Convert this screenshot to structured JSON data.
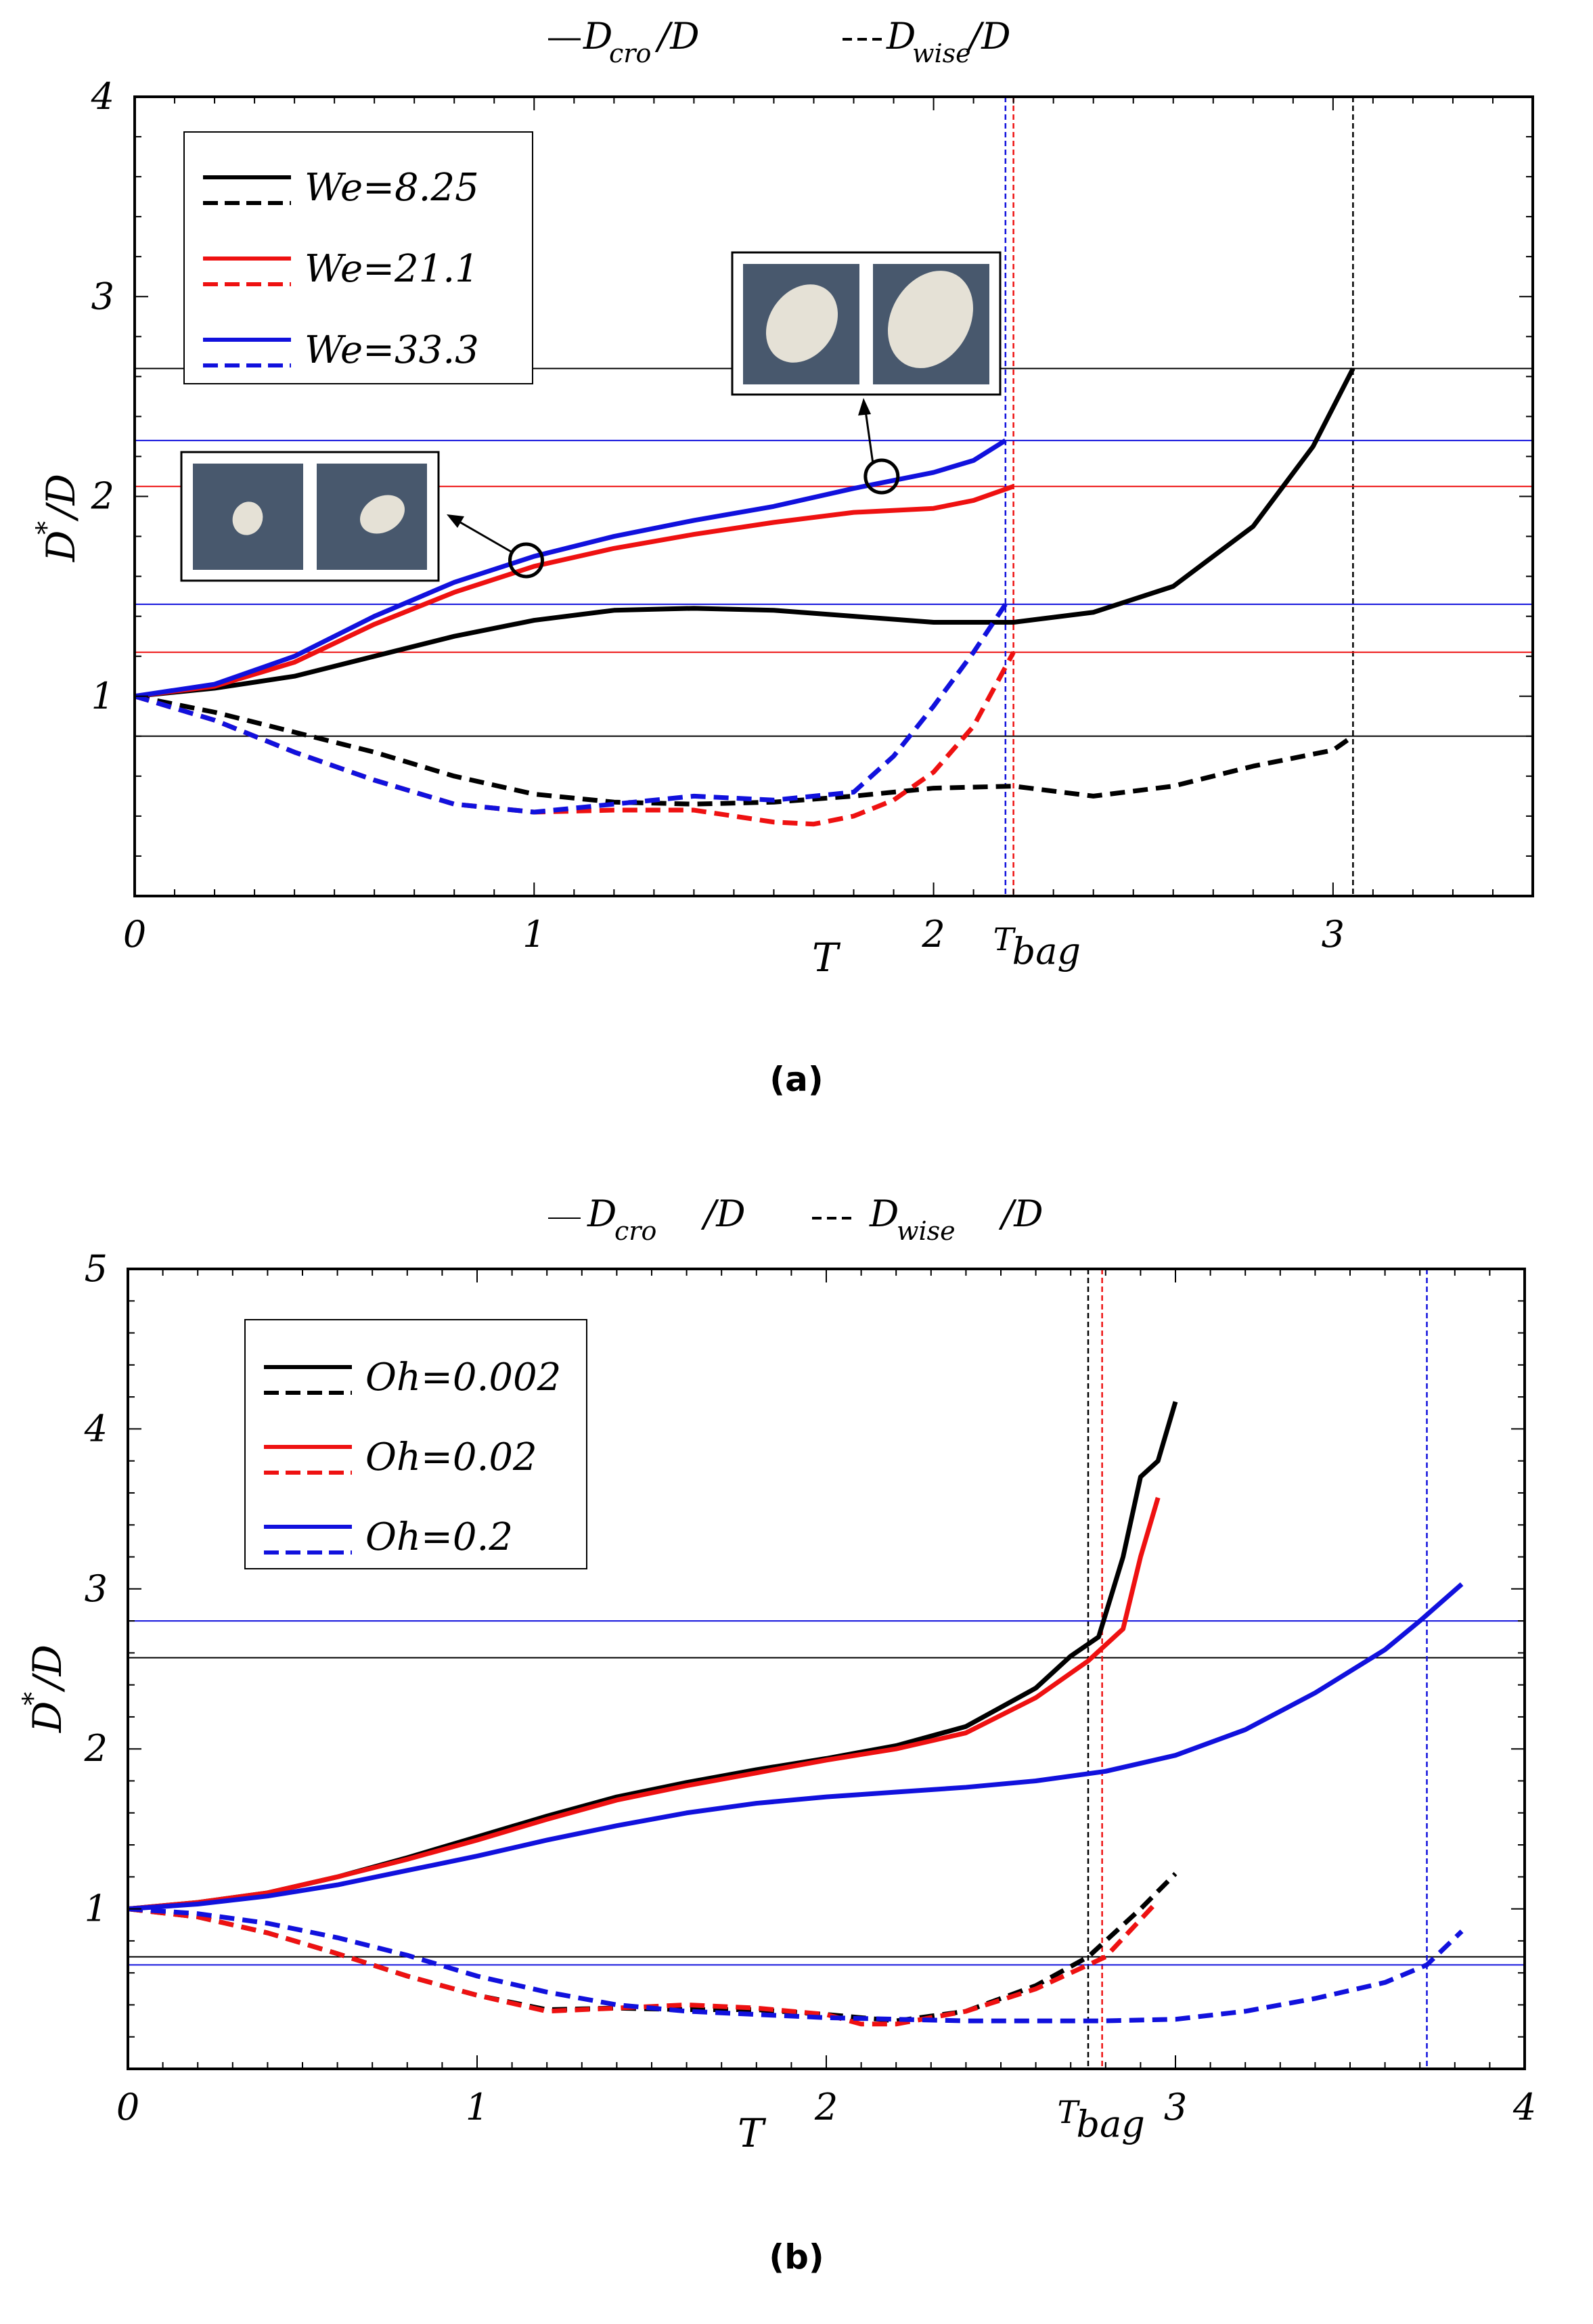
{
  "chart_data": [
    {
      "panel": "a",
      "type": "line",
      "caption": "(a)",
      "header": {
        "solid_label": "D",
        "solid_sub": "cro",
        "solid_tail": "/D",
        "dashed_label": "D",
        "dashed_sub": "wise",
        "dashed_tail": "/D"
      },
      "xlabel": "T",
      "ylabel": "D",
      "ylabel_sup": "*",
      "ylabel_tail": "/D",
      "xlim": [
        0,
        3.5
      ],
      "ylim": [
        0,
        4
      ],
      "xticks": [
        0,
        1,
        2,
        3
      ],
      "xtick_labels": [
        "0",
        "1",
        "2",
        "3"
      ],
      "yticks": [
        1,
        2,
        3,
        4
      ],
      "ytick_labels": [
        "1",
        "2",
        "3",
        "4"
      ],
      "tbag_label": "T",
      "tbag_sub": "bag",
      "tbag_label_x": 2.2,
      "legend_position": "top-left",
      "colors": {
        "black": "#000000",
        "red": "#ee1111",
        "blue": "#1111dd"
      },
      "series": [
        {
          "name": "We=8.25",
          "legend": "We=8.25",
          "color": "#000000",
          "solid_x": [
            0,
            0.2,
            0.4,
            0.6,
            0.8,
            1.0,
            1.2,
            1.4,
            1.6,
            1.8,
            2.0,
            2.2,
            2.4,
            2.6,
            2.8,
            2.95,
            3.05
          ],
          "solid_y": [
            1.0,
            1.04,
            1.1,
            1.2,
            1.3,
            1.38,
            1.43,
            1.44,
            1.43,
            1.4,
            1.37,
            1.37,
            1.42,
            1.55,
            1.85,
            2.25,
            2.64
          ],
          "dashed_x": [
            0,
            0.2,
            0.4,
            0.6,
            0.8,
            1.0,
            1.2,
            1.4,
            1.6,
            1.8,
            2.0,
            2.2,
            2.4,
            2.6,
            2.8,
            3.0,
            3.05
          ],
          "dashed_y": [
            1.0,
            0.92,
            0.82,
            0.72,
            0.6,
            0.51,
            0.47,
            0.46,
            0.47,
            0.5,
            0.54,
            0.55,
            0.5,
            0.55,
            0.65,
            0.73,
            0.8
          ],
          "tbag": 3.05,
          "hlines": [
            2.64,
            0.8
          ]
        },
        {
          "name": "We=21.1",
          "legend": "We=21.1",
          "color": "#ee1111",
          "solid_x": [
            0,
            0.2,
            0.4,
            0.6,
            0.8,
            1.0,
            1.2,
            1.4,
            1.6,
            1.8,
            2.0,
            2.1,
            2.2
          ],
          "solid_y": [
            1.0,
            1.05,
            1.17,
            1.36,
            1.52,
            1.65,
            1.74,
            1.81,
            1.87,
            1.92,
            1.94,
            1.98,
            2.05
          ],
          "dashed_x": [
            0,
            0.2,
            0.4,
            0.6,
            0.8,
            1.0,
            1.2,
            1.4,
            1.6,
            1.7,
            1.8,
            1.9,
            2.0,
            2.1,
            2.2
          ],
          "dashed_y": [
            1.0,
            0.88,
            0.72,
            0.58,
            0.46,
            0.42,
            0.43,
            0.43,
            0.37,
            0.36,
            0.4,
            0.48,
            0.62,
            0.85,
            1.22
          ],
          "tbag": 2.2,
          "hlines": [
            2.05,
            1.22
          ]
        },
        {
          "name": "We=33.3",
          "legend": "We=33.3",
          "color": "#1111dd",
          "solid_x": [
            0,
            0.2,
            0.4,
            0.6,
            0.8,
            1.0,
            1.2,
            1.4,
            1.6,
            1.8,
            2.0,
            2.1,
            2.18
          ],
          "solid_y": [
            1.0,
            1.06,
            1.2,
            1.4,
            1.57,
            1.7,
            1.8,
            1.88,
            1.95,
            2.04,
            2.12,
            2.18,
            2.28
          ],
          "dashed_x": [
            0,
            0.2,
            0.4,
            0.6,
            0.8,
            1.0,
            1.2,
            1.4,
            1.6,
            1.8,
            1.9,
            2.0,
            2.1,
            2.18
          ],
          "dashed_y": [
            1.0,
            0.88,
            0.72,
            0.58,
            0.46,
            0.42,
            0.46,
            0.5,
            0.48,
            0.52,
            0.7,
            0.95,
            1.22,
            1.46
          ],
          "tbag": 2.18,
          "hlines": [
            2.28,
            1.46
          ]
        }
      ],
      "annotations": [
        {
          "type": "droplet-inset",
          "marker_x": 0.98,
          "marker_y": 1.68
        },
        {
          "type": "droplet-inset",
          "marker_x": 1.87,
          "marker_y": 2.1
        }
      ]
    },
    {
      "panel": "b",
      "type": "line",
      "caption": "(b)",
      "header": {
        "solid_label": "D",
        "solid_sub": "cro",
        "solid_tail": "/D",
        "dashed_label": "D",
        "dashed_sub": "wise",
        "dashed_tail": "/D"
      },
      "xlabel": "T",
      "ylabel": "D",
      "ylabel_sup": "*",
      "ylabel_tail": "/D",
      "xlim": [
        0,
        4
      ],
      "ylim": [
        0,
        5
      ],
      "xticks": [
        0,
        1,
        2,
        3,
        4
      ],
      "xtick_labels": [
        "0",
        "1",
        "2",
        "3",
        "4"
      ],
      "yticks": [
        1,
        2,
        3,
        4,
        5
      ],
      "ytick_labels": [
        "1",
        "2",
        "3",
        "4",
        "5"
      ],
      "tbag_label": "T",
      "tbag_sub": "bag",
      "tbag_label_x": 2.72,
      "legend_position": "top-left",
      "colors": {
        "black": "#000000",
        "red": "#ee1111",
        "blue": "#1111dd"
      },
      "series": [
        {
          "name": "Oh=0.002",
          "legend": "Oh=0.002",
          "color": "#000000",
          "solid_x": [
            0,
            0.2,
            0.4,
            0.6,
            0.8,
            1.0,
            1.2,
            1.4,
            1.6,
            1.8,
            2.0,
            2.2,
            2.4,
            2.6,
            2.7,
            2.78,
            2.85,
            2.9,
            2.95,
            3.0
          ],
          "solid_y": [
            1.0,
            1.04,
            1.1,
            1.2,
            1.32,
            1.45,
            1.58,
            1.7,
            1.79,
            1.87,
            1.94,
            2.02,
            2.14,
            2.38,
            2.58,
            2.7,
            3.2,
            3.7,
            3.8,
            4.17
          ],
          "dashed_x": [
            0,
            0.2,
            0.4,
            0.6,
            0.8,
            1.0,
            1.2,
            1.4,
            1.6,
            1.8,
            2.0,
            2.2,
            2.4,
            2.6,
            2.75,
            2.9,
            3.0
          ],
          "dashed_y": [
            1.0,
            0.95,
            0.85,
            0.72,
            0.58,
            0.46,
            0.37,
            0.38,
            0.37,
            0.37,
            0.34,
            0.3,
            0.36,
            0.52,
            0.7,
            1.0,
            1.22
          ],
          "tbag": 2.75,
          "hlines": [
            2.57,
            0.7
          ]
        },
        {
          "name": "Oh=0.02",
          "legend": "Oh=0.02",
          "color": "#ee1111",
          "solid_x": [
            0,
            0.2,
            0.4,
            0.6,
            0.8,
            1.0,
            1.2,
            1.4,
            1.6,
            1.8,
            2.0,
            2.2,
            2.4,
            2.6,
            2.75,
            2.85,
            2.9,
            2.95
          ],
          "solid_y": [
            1.0,
            1.04,
            1.1,
            1.2,
            1.31,
            1.43,
            1.56,
            1.68,
            1.77,
            1.85,
            1.93,
            2.0,
            2.1,
            2.32,
            2.55,
            2.75,
            3.2,
            3.57
          ],
          "dashed_x": [
            0,
            0.2,
            0.4,
            0.6,
            0.8,
            1.0,
            1.2,
            1.4,
            1.6,
            1.8,
            2.0,
            2.1,
            2.2,
            2.4,
            2.6,
            2.8,
            2.95
          ],
          "dashed_y": [
            1.0,
            0.95,
            0.85,
            0.72,
            0.58,
            0.46,
            0.36,
            0.38,
            0.4,
            0.38,
            0.34,
            0.28,
            0.28,
            0.36,
            0.5,
            0.7,
            1.05
          ],
          "tbag": 2.79,
          "hlines": []
        },
        {
          "name": "Oh=0.2",
          "legend": "Oh=0.2",
          "color": "#1111dd",
          "solid_x": [
            0,
            0.2,
            0.4,
            0.6,
            0.8,
            1.0,
            1.2,
            1.4,
            1.6,
            1.8,
            2.0,
            2.2,
            2.4,
            2.6,
            2.8,
            3.0,
            3.2,
            3.4,
            3.6,
            3.7,
            3.82
          ],
          "solid_y": [
            1.0,
            1.03,
            1.08,
            1.15,
            1.24,
            1.33,
            1.43,
            1.52,
            1.6,
            1.66,
            1.7,
            1.73,
            1.76,
            1.8,
            1.86,
            1.96,
            2.12,
            2.35,
            2.62,
            2.8,
            3.03
          ],
          "dashed_x": [
            0,
            0.2,
            0.4,
            0.6,
            0.8,
            1.0,
            1.2,
            1.4,
            1.6,
            1.8,
            2.0,
            2.2,
            2.4,
            2.6,
            2.8,
            3.0,
            3.2,
            3.4,
            3.6,
            3.72,
            3.82
          ],
          "dashed_y": [
            1.0,
            0.97,
            0.91,
            0.82,
            0.71,
            0.58,
            0.48,
            0.4,
            0.36,
            0.34,
            0.32,
            0.31,
            0.3,
            0.3,
            0.3,
            0.31,
            0.36,
            0.44,
            0.54,
            0.65,
            0.86
          ],
          "tbag": 3.72,
          "hlines": [
            2.8,
            0.65
          ]
        }
      ]
    }
  ]
}
